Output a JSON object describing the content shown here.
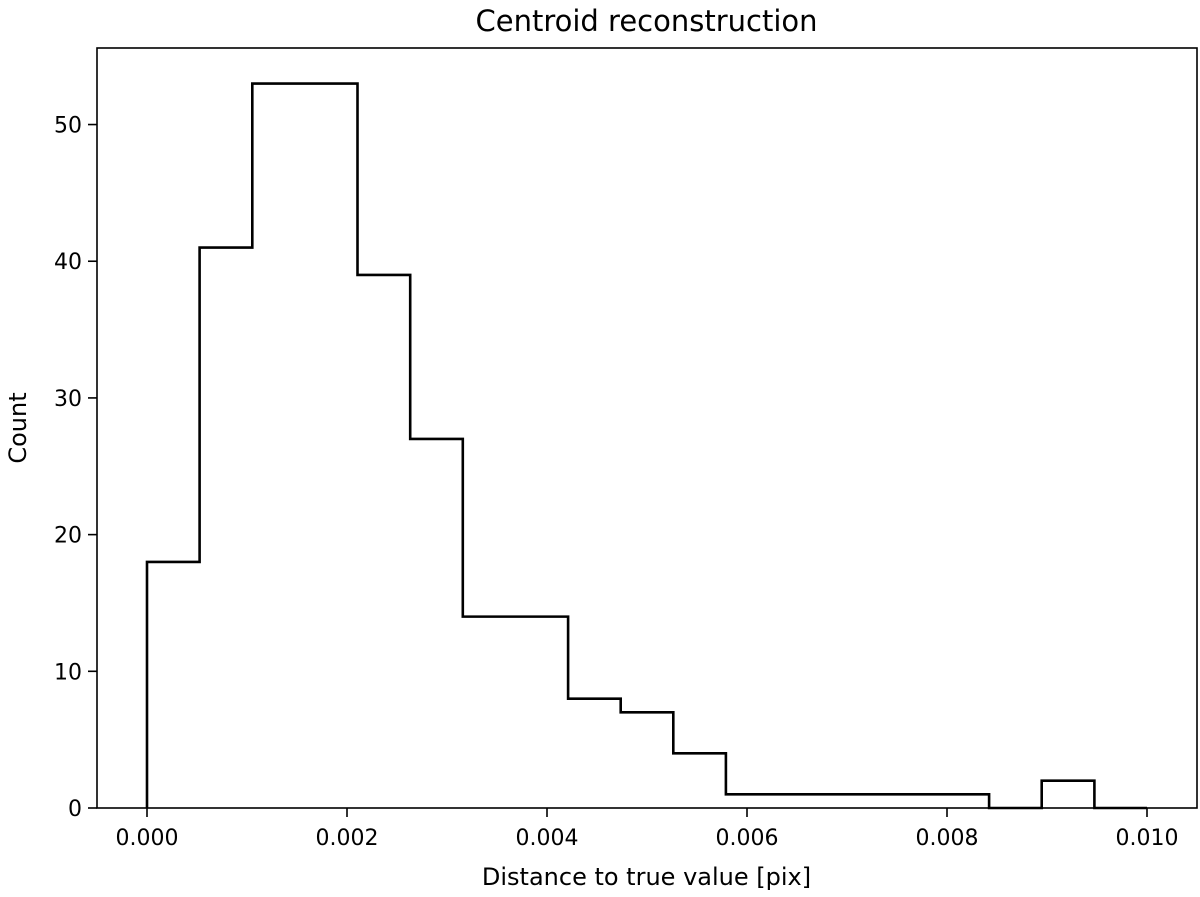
{
  "chart_data": {
    "type": "histogram",
    "title": "Centroid reconstruction",
    "xlabel": "Distance to true value [pix]",
    "ylabel": "Count",
    "histtype": "step",
    "color": "#000000",
    "xlim": [
      -0.0005,
      0.0105
    ],
    "ylim": [
      0,
      55.6
    ],
    "xticks": [
      0.0,
      0.002,
      0.004,
      0.006,
      0.008,
      0.01
    ],
    "xtick_labels": [
      "0.000",
      "0.002",
      "0.004",
      "0.006",
      "0.008",
      "0.010"
    ],
    "yticks": [
      0,
      10,
      20,
      30,
      40,
      50
    ],
    "ytick_labels": [
      "0",
      "10",
      "20",
      "30",
      "40",
      "50"
    ],
    "bin_edges": [
      0.0,
      0.000526,
      0.001053,
      0.001579,
      0.002105,
      0.002632,
      0.003158,
      0.003684,
      0.004211,
      0.004737,
      0.005263,
      0.005789,
      0.006316,
      0.006842,
      0.007368,
      0.007895,
      0.008421,
      0.008947,
      0.009474,
      0.01
    ],
    "counts": [
      18,
      41,
      53,
      53,
      39,
      27,
      14,
      14,
      8,
      7,
      4,
      1,
      1,
      1,
      1,
      1,
      0,
      2,
      0
    ],
    "grid": false,
    "legend": "none"
  }
}
